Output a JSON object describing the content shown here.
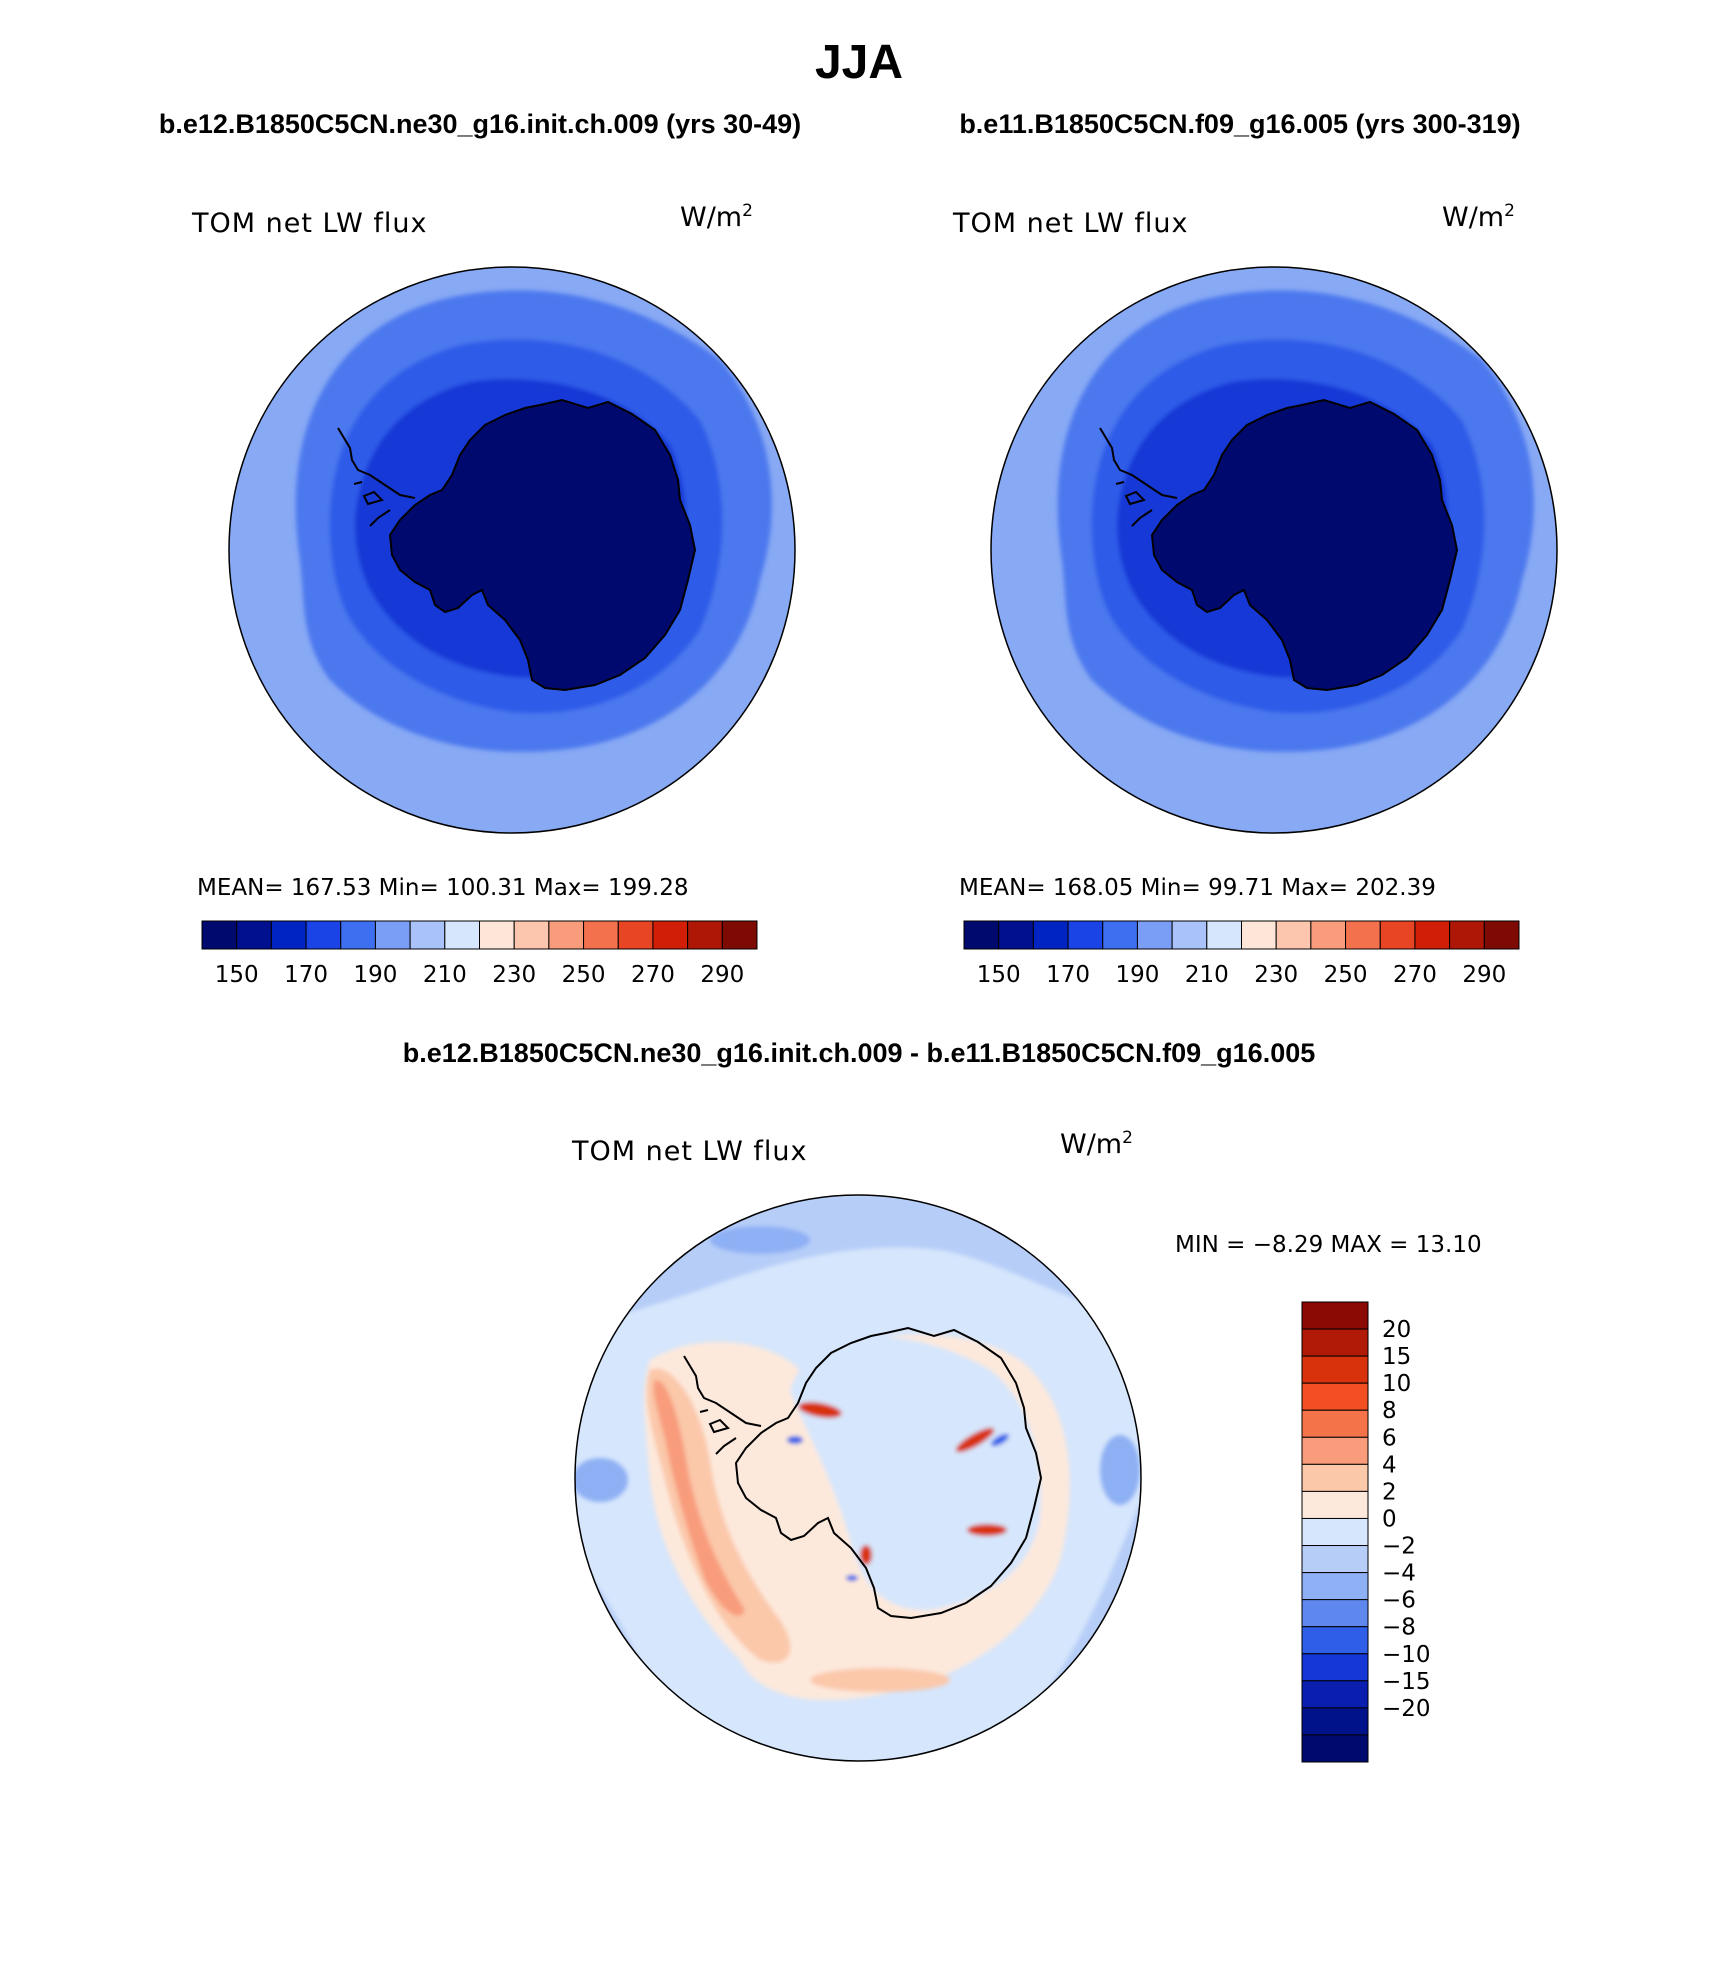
{
  "figure": {
    "title": "JJA",
    "panel1_title": "b.e12.B1850C5CN.ne30_g16.init.ch.009 (yrs 30-49)",
    "panel2_title": "b.e11.B1850C5CN.f09_g16.005 (yrs 300-319)",
    "diff_title": "b.e12.B1850C5CN.ne30_g16.init.ch.009 - b.e11.B1850C5CN.f09_g16.005"
  },
  "panels": [
    {
      "variable": "TOM net LW flux",
      "units": "W/m",
      "units_sup": "2",
      "stats": "MEAN= 167.53   Min= 100.31   Max= 199.28"
    },
    {
      "variable": "TOM net LW flux",
      "units": "W/m",
      "units_sup": "2",
      "stats": "MEAN= 168.05   Min=  99.71   Max= 202.39"
    }
  ],
  "diff_panel": {
    "variable": "TOM net LW flux",
    "units": "W/m",
    "units_sup": "2",
    "stats": "MIN =  −8.29 MAX =   13.10"
  },
  "colorbar_main": {
    "colors": [
      "#000a6e",
      "#00108f",
      "#0024c2",
      "#1a44e6",
      "#3e6ff0",
      "#7a9ef5",
      "#a9c2f9",
      "#d6e6fc",
      "#fde6d7",
      "#fbc5ae",
      "#f89c7c",
      "#f3714d",
      "#e84524",
      "#d01f06",
      "#ae1705",
      "#7d0a03"
    ],
    "tick_labels": [
      "150",
      "170",
      "190",
      "210",
      "230",
      "250",
      "270",
      "290"
    ]
  },
  "colorbar_diff": {
    "colors_top_to_bottom": [
      "#8b0a04",
      "#b01a06",
      "#d8320d",
      "#f24f22",
      "#f57348",
      "#f89c7c",
      "#fbc8aa",
      "#fde9dc",
      "#d6e6fc",
      "#b6cdf8",
      "#8eb0f4",
      "#5f88ef",
      "#2f5ee8",
      "#1437d6",
      "#0a1fb0",
      "#00128a",
      "#000a6e"
    ],
    "tick_labels_top_to_bottom": [
      "20",
      "15",
      "10",
      "8",
      "6",
      "4",
      "2",
      "0",
      "−2",
      "−4",
      "−6",
      "−8",
      "−10",
      "−15",
      "−20"
    ]
  }
}
